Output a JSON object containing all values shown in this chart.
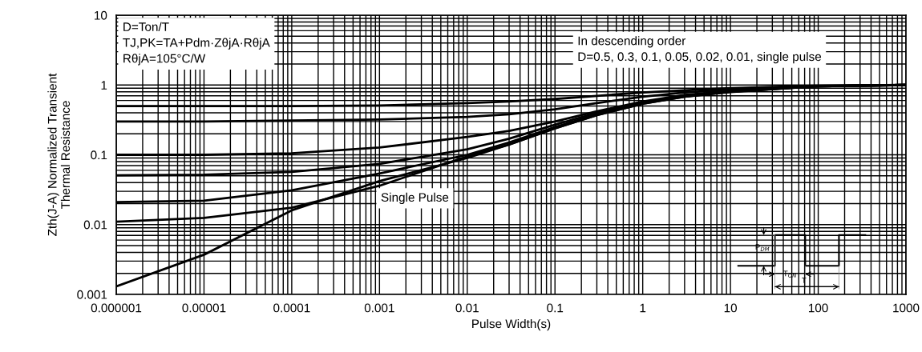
{
  "chart_data": {
    "type": "line",
    "xlabel": "Pulse Width(s)",
    "ylabel": "Zth(J-A) Normalized Transient\nThermal Resistance",
    "x": [
      1e-06,
      1e-05,
      0.0001,
      0.001,
      0.01,
      0.03,
      0.1,
      0.3,
      1,
      3,
      10,
      100,
      1000
    ],
    "series": [
      {
        "color": "#000000",
        "values": [
          0.5,
          0.5,
          0.5,
          0.51,
          0.55,
          0.58,
          0.63,
          0.7,
          0.78,
          0.84,
          0.9,
          0.98,
          1.0
        ]
      },
      {
        "color": "#000000",
        "values": [
          0.3,
          0.3,
          0.31,
          0.32,
          0.35,
          0.38,
          0.45,
          0.55,
          0.68,
          0.78,
          0.86,
          0.97,
          1.0
        ]
      },
      {
        "color": "#000000",
        "values": [
          0.1,
          0.1,
          0.105,
          0.127,
          0.18,
          0.22,
          0.3,
          0.42,
          0.58,
          0.72,
          0.82,
          0.96,
          1.0
        ]
      },
      {
        "color": "#000000",
        "values": [
          0.051,
          0.052,
          0.057,
          0.074,
          0.12,
          0.17,
          0.27,
          0.4,
          0.56,
          0.7,
          0.81,
          0.96,
          1.0
        ]
      },
      {
        "color": "#000000",
        "values": [
          0.021,
          0.022,
          0.031,
          0.054,
          0.1,
          0.15,
          0.25,
          0.38,
          0.55,
          0.69,
          0.8,
          0.96,
          1.0
        ]
      },
      {
        "color": "#000000",
        "values": [
          0.011,
          0.0125,
          0.0175,
          0.036,
          0.095,
          0.14,
          0.24,
          0.37,
          0.54,
          0.68,
          0.8,
          0.96,
          1.0
        ]
      },
      {
        "color": "#000000",
        "values": [
          0.0013,
          0.0037,
          0.016,
          0.042,
          0.09,
          0.14,
          0.24,
          0.37,
          0.54,
          0.68,
          0.79,
          0.96,
          1.0
        ]
      }
    ],
    "xlim": [
      1e-06,
      1000
    ],
    "ylim": [
      0.001,
      10
    ],
    "xticks": [
      {
        "value": 1e-06,
        "label": "0.000001"
      },
      {
        "value": 1e-05,
        "label": "0.00001"
      },
      {
        "value": 0.0001,
        "label": "0.0001"
      },
      {
        "value": 0.001,
        "label": "0.001"
      },
      {
        "value": 0.01,
        "label": "0.01"
      },
      {
        "value": 0.1,
        "label": "0.1"
      },
      1,
      10,
      100,
      1000
    ],
    "yticks": [
      {
        "value": 0.001,
        "label": "0.001"
      },
      {
        "value": 0.01,
        "label": "0.01"
      },
      {
        "value": 0.1,
        "label": "0.1"
      },
      1,
      10
    ],
    "log": "xy",
    "grid": true,
    "marker": "none",
    "line_style": "solid",
    "annotations": [
      "D=Ton/T\nTJ,PK=TA+Pdm·ZθjA·RθjA\nRθjA=105°C/W",
      "In descending order\nD=0.5, 0.3, 0.1, 0.05, 0.02, 0.01, single pulse",
      "Single Pulse",
      "P$_{DM}$",
      "T$_{ON}$",
      "T"
    ]
  }
}
